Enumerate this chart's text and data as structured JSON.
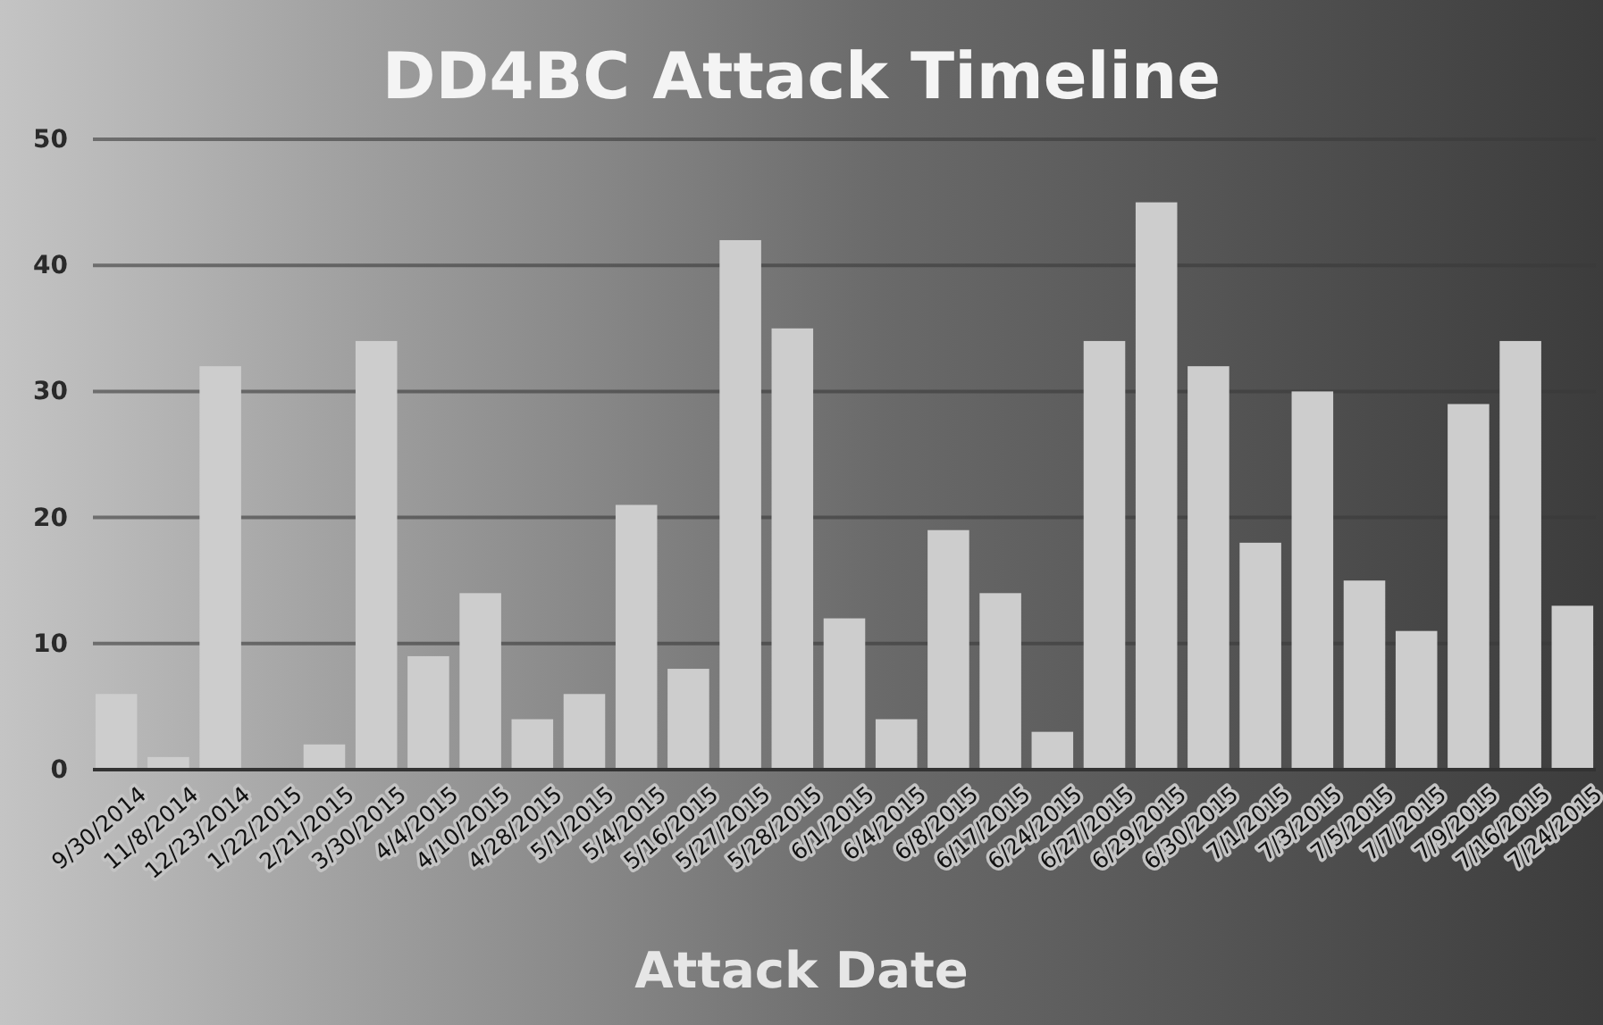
{
  "chart_data": {
    "type": "bar",
    "title": "DD4BC  Attack  Timeline",
    "xlabel": "Attack Date",
    "categories": [
      "9/30/2014",
      "11/8/2014",
      "12/23/2014",
      "1/22/2015",
      "2/21/2015",
      "3/30/2015",
      "4/4/2015",
      "4/10/2015",
      "4/28/2015",
      "5/1/2015",
      "5/4/2015",
      "5/16/2015",
      "5/27/2015",
      "5/28/2015",
      "6/1/2015",
      "6/4/2015",
      "6/8/2015",
      "6/17/2015",
      "6/24/2015",
      "6/27/2015",
      "6/29/2015",
      "6/30/2015",
      "7/1/2015",
      "7/3/2015",
      "7/5/2015",
      "7/7/2015",
      "7/9/2015",
      "7/16/2015",
      "7/24/2015"
    ],
    "values": [
      6,
      1,
      32,
      0,
      2,
      34,
      9,
      14,
      4,
      6,
      21,
      8,
      42,
      35,
      12,
      4,
      19,
      14,
      3,
      34,
      45,
      32,
      18,
      30,
      15,
      11,
      29,
      34,
      13
    ],
    "color": "#cdcdcd",
    "ylim": [
      0,
      50
    ],
    "yticks": [
      0,
      10,
      20,
      30,
      40,
      50
    ],
    "grid": "y"
  }
}
